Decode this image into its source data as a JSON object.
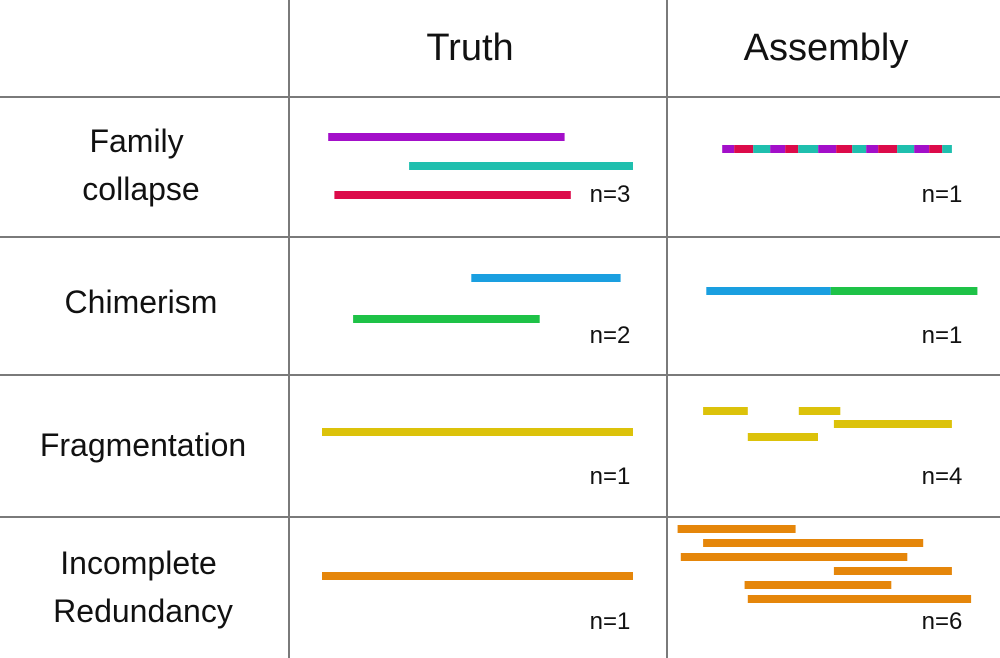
{
  "colors": {
    "purple": "#a30fc9",
    "teal": "#1fbfae",
    "crimson": "#dc0b4a",
    "blue": "#1a9fe0",
    "green": "#1ec247",
    "yellow": "#dcc20a",
    "orange": "#e5860a",
    "grid": "#7a7a7a"
  },
  "headers": {
    "truth": "Truth",
    "assembly": "Assembly"
  },
  "rows": [
    {
      "label_lines": [
        "Family",
        "collapse"
      ],
      "truth_count": "n=3",
      "assembly_count": "n=1",
      "truth_segments": [
        {
          "start": 0.02,
          "end": 0.78,
          "lane": 0,
          "color": "purple"
        },
        {
          "start": 0.28,
          "end": 1.0,
          "lane": 1,
          "color": "teal"
        },
        {
          "start": 0.04,
          "end": 0.8,
          "lane": 2,
          "color": "crimson"
        }
      ],
      "assembly_segments": [
        {
          "start": 0.17,
          "end": 0.89,
          "lane": 0,
          "color": "mixed",
          "palette": [
            "purple",
            "crimson",
            "teal"
          ]
        }
      ]
    },
    {
      "label_lines": [
        "Chimerism"
      ],
      "truth_count": "n=2",
      "assembly_count": "n=1",
      "truth_segments": [
        {
          "start": 0.48,
          "end": 0.96,
          "lane": 0,
          "color": "blue"
        },
        {
          "start": 0.1,
          "end": 0.7,
          "lane": 1,
          "color": "green"
        }
      ],
      "assembly_segments": [
        {
          "start": 0.12,
          "end": 0.51,
          "lane": 0,
          "color": "blue"
        },
        {
          "start": 0.51,
          "end": 0.97,
          "lane": 0,
          "color": "green"
        }
      ]
    },
    {
      "label_lines": [
        "Fragmentation"
      ],
      "truth_count": "n=1",
      "assembly_count": "n=4",
      "truth_segments": [
        {
          "start": 0.0,
          "end": 1.0,
          "lane": 0,
          "color": "yellow"
        }
      ],
      "assembly_segments": [
        {
          "start": 0.11,
          "end": 0.25,
          "lane": 0,
          "color": "yellow"
        },
        {
          "start": 0.41,
          "end": 0.54,
          "lane": 0,
          "color": "yellow"
        },
        {
          "start": 0.25,
          "end": 0.47,
          "lane": 2,
          "color": "yellow"
        },
        {
          "start": 0.52,
          "end": 0.89,
          "lane": 1,
          "color": "yellow"
        }
      ]
    },
    {
      "label_lines": [
        "Incomplete",
        "Redundancy"
      ],
      "truth_count": "n=1",
      "assembly_count": "n=6",
      "truth_segments": [
        {
          "start": 0.0,
          "end": 1.0,
          "lane": 0,
          "color": "orange"
        }
      ],
      "assembly_segments": [
        {
          "start": 0.03,
          "end": 0.4,
          "lane": 0,
          "color": "orange"
        },
        {
          "start": 0.11,
          "end": 0.8,
          "lane": 1,
          "color": "orange"
        },
        {
          "start": 0.04,
          "end": 0.75,
          "lane": 2,
          "color": "orange"
        },
        {
          "start": 0.52,
          "end": 0.89,
          "lane": 3,
          "color": "orange"
        },
        {
          "start": 0.24,
          "end": 0.7,
          "lane": 4,
          "color": "orange"
        },
        {
          "start": 0.25,
          "end": 0.95,
          "lane": 5,
          "color": "orange"
        }
      ]
    }
  ]
}
